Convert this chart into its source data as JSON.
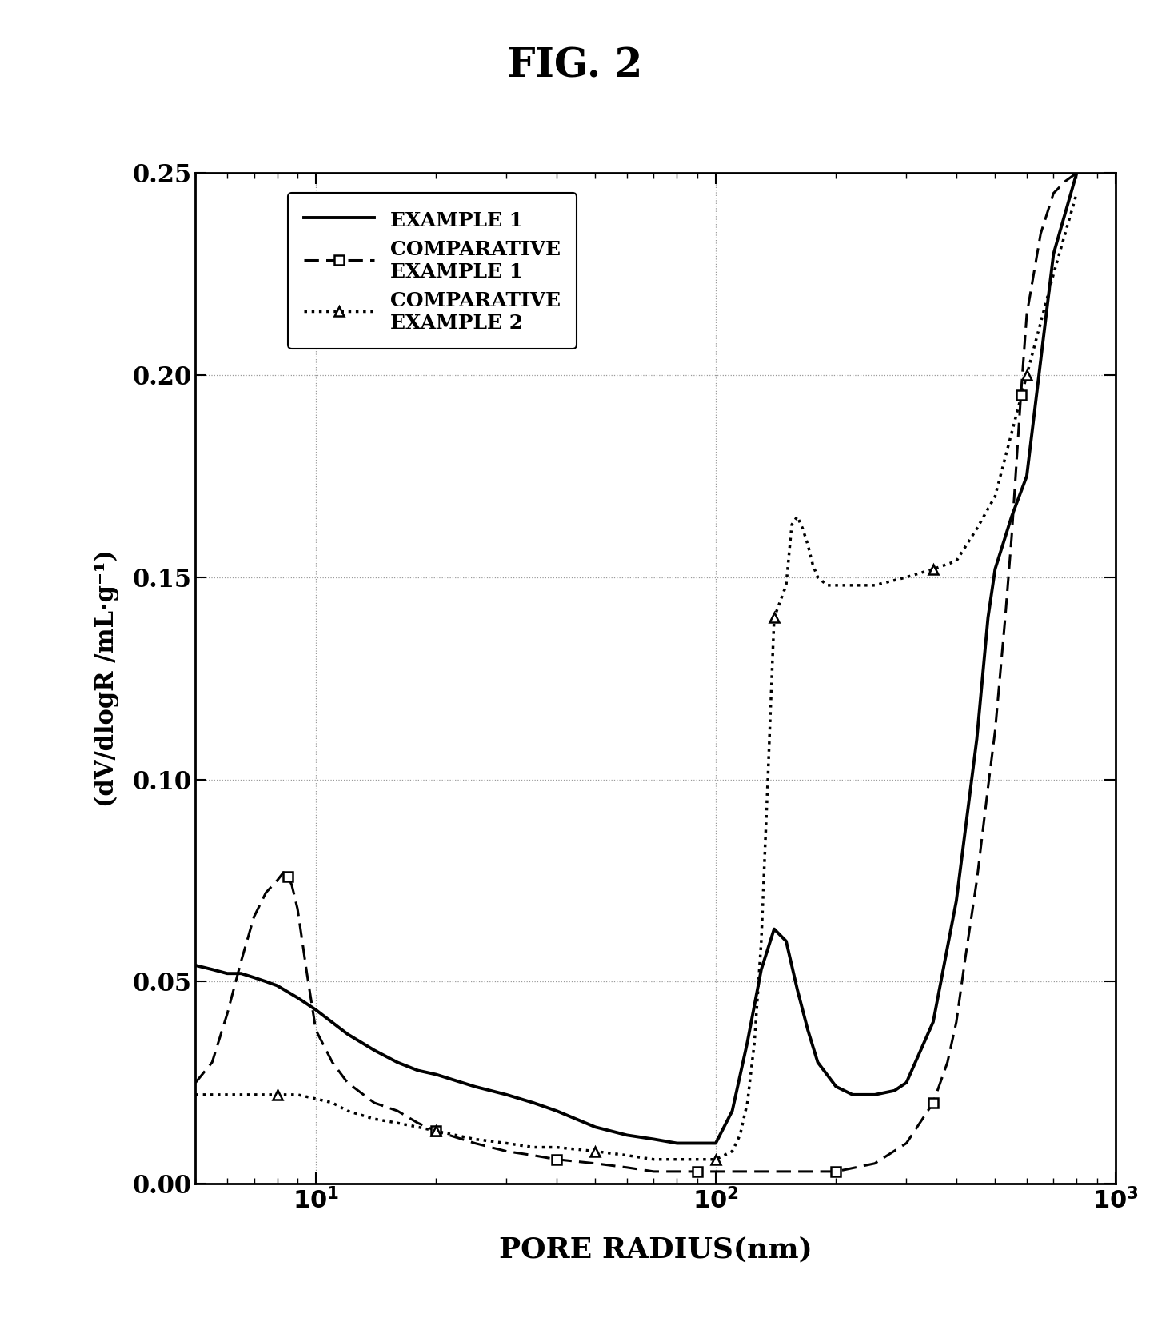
{
  "title": "FIG. 2",
  "xlabel": "PORE RADIUS(nm)",
  "ylabel": "(dV/dlogR /mL·g⁻¹)",
  "xlim": [
    5,
    1000
  ],
  "ylim": [
    0.0,
    0.25
  ],
  "yticks": [
    0.0,
    0.05,
    0.1,
    0.15,
    0.2,
    0.25
  ],
  "ytick_labels": [
    "0.00",
    "0.05",
    "0.10",
    "0.15",
    "0.20",
    "0.25"
  ],
  "legend_labels": [
    "EXAMPLE 1",
    "COMPARATIVE\nEXAMPLE 1",
    "COMPARATIVE\nEXAMPLE 2"
  ],
  "example1": {
    "x": [
      5.0,
      5.5,
      6.0,
      6.5,
      7.0,
      7.5,
      8.0,
      9.0,
      10.0,
      12.0,
      14.0,
      16.0,
      18.0,
      20.0,
      25.0,
      30.0,
      35.0,
      40.0,
      50.0,
      60.0,
      70.0,
      80.0,
      90.0,
      95.0,
      100.0,
      110.0,
      120.0,
      130.0,
      140.0,
      150.0,
      160.0,
      170.0,
      180.0,
      200.0,
      220.0,
      250.0,
      280.0,
      300.0,
      350.0,
      400.0,
      450.0,
      480.0,
      500.0,
      550.0,
      600.0,
      700.0,
      800.0
    ],
    "y": [
      0.054,
      0.053,
      0.052,
      0.052,
      0.051,
      0.05,
      0.049,
      0.046,
      0.043,
      0.037,
      0.033,
      0.03,
      0.028,
      0.027,
      0.024,
      0.022,
      0.02,
      0.018,
      0.014,
      0.012,
      0.011,
      0.01,
      0.01,
      0.01,
      0.01,
      0.018,
      0.035,
      0.053,
      0.063,
      0.06,
      0.048,
      0.038,
      0.03,
      0.024,
      0.022,
      0.022,
      0.023,
      0.025,
      0.04,
      0.07,
      0.11,
      0.14,
      0.152,
      0.165,
      0.175,
      0.23,
      0.25
    ]
  },
  "comp1": {
    "x": [
      5.0,
      5.5,
      6.0,
      6.5,
      7.0,
      7.5,
      8.0,
      8.3,
      8.5,
      8.7,
      9.0,
      9.5,
      10.0,
      11.0,
      12.0,
      14.0,
      16.0,
      18.0,
      20.0,
      25.0,
      30.0,
      35.0,
      40.0,
      50.0,
      60.0,
      70.0,
      80.0,
      90.0,
      100.0,
      110.0,
      120.0,
      150.0,
      200.0,
      250.0,
      300.0,
      350.0,
      380.0,
      400.0,
      420.0,
      450.0,
      480.0,
      500.0,
      530.0,
      550.0,
      580.0,
      600.0,
      650.0,
      700.0,
      750.0,
      800.0
    ],
    "y": [
      0.025,
      0.03,
      0.042,
      0.055,
      0.066,
      0.072,
      0.075,
      0.077,
      0.076,
      0.074,
      0.068,
      0.052,
      0.038,
      0.03,
      0.025,
      0.02,
      0.018,
      0.015,
      0.013,
      0.01,
      0.008,
      0.007,
      0.006,
      0.005,
      0.004,
      0.003,
      0.003,
      0.003,
      0.003,
      0.003,
      0.003,
      0.003,
      0.003,
      0.005,
      0.01,
      0.02,
      0.03,
      0.04,
      0.055,
      0.075,
      0.098,
      0.112,
      0.14,
      0.16,
      0.195,
      0.215,
      0.235,
      0.245,
      0.248,
      0.25
    ],
    "markers_x": [
      8.5,
      20.0,
      40.0,
      90.0,
      200.0,
      350.0,
      580.0
    ],
    "markers_y": [
      0.076,
      0.013,
      0.006,
      0.003,
      0.003,
      0.02,
      0.195
    ]
  },
  "comp2": {
    "x": [
      5.0,
      6.0,
      7.0,
      8.0,
      9.0,
      10.0,
      11.0,
      12.0,
      14.0,
      16.0,
      18.0,
      20.0,
      25.0,
      30.0,
      35.0,
      40.0,
      50.0,
      60.0,
      70.0,
      80.0,
      90.0,
      100.0,
      110.0,
      115.0,
      120.0,
      125.0,
      130.0,
      135.0,
      140.0,
      150.0,
      155.0,
      160.0,
      165.0,
      170.0,
      175.0,
      180.0,
      190.0,
      200.0,
      220.0,
      250.0,
      300.0,
      350.0,
      400.0,
      450.0,
      500.0,
      600.0,
      700.0,
      800.0
    ],
    "y": [
      0.022,
      0.022,
      0.022,
      0.022,
      0.022,
      0.021,
      0.02,
      0.018,
      0.016,
      0.015,
      0.014,
      0.013,
      0.011,
      0.01,
      0.009,
      0.009,
      0.008,
      0.007,
      0.006,
      0.006,
      0.006,
      0.006,
      0.008,
      0.012,
      0.02,
      0.035,
      0.06,
      0.1,
      0.14,
      0.148,
      0.163,
      0.165,
      0.162,
      0.158,
      0.153,
      0.15,
      0.148,
      0.148,
      0.148,
      0.148,
      0.15,
      0.152,
      0.154,
      0.162,
      0.17,
      0.2,
      0.225,
      0.245
    ],
    "markers_x": [
      8.0,
      20.0,
      50.0,
      100.0,
      140.0,
      350.0,
      600.0
    ],
    "markers_y": [
      0.022,
      0.013,
      0.008,
      0.006,
      0.14,
      0.152,
      0.2
    ]
  },
  "background_color": "#ffffff",
  "line_color": "#000000",
  "grid_color": "#999999"
}
